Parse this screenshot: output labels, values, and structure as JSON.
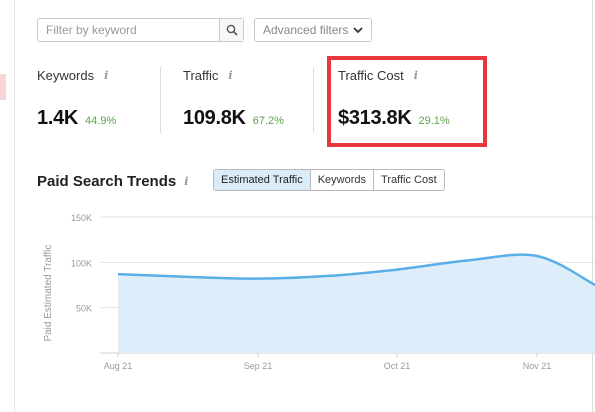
{
  "filters": {
    "keyword_placeholder": "Filter by keyword",
    "advanced_label": "Advanced filters"
  },
  "metrics": [
    {
      "label": "Keywords",
      "value": "1.4K",
      "change": "44.9%"
    },
    {
      "label": "Traffic",
      "value": "109.8K",
      "change": "67.2%"
    },
    {
      "label": "Traffic Cost",
      "value": "$313.8K",
      "change": "29.1%"
    }
  ],
  "trends": {
    "title": "Paid Search Trends",
    "tabs": [
      "Estimated Traffic",
      "Keywords",
      "Traffic Cost"
    ],
    "active_tab": "Estimated Traffic"
  },
  "colors": {
    "line": "#5aafe6",
    "area": "#ddeefa",
    "highlight": "#e8383d",
    "positive": "#5aa64a"
  },
  "chart_data": {
    "type": "area",
    "ylabel": "Paid Estimated Traffic",
    "yticks": [
      "150K",
      "100K",
      "50K"
    ],
    "ylim": [
      0,
      150000
    ],
    "xticks": [
      "Aug 21",
      "Sep 21",
      "Oct 21",
      "Nov 21"
    ],
    "grid": true,
    "series": [
      {
        "x": [
          "Aug 21",
          "Aug 21 mid",
          "Sep 21",
          "Sep 21 mid",
          "Oct 21",
          "Oct 21 mid",
          "Nov 21",
          "Nov 21 mid"
        ],
        "values": [
          87000,
          84000,
          82000,
          85000,
          92000,
          102000,
          107000,
          75000
        ]
      }
    ]
  }
}
